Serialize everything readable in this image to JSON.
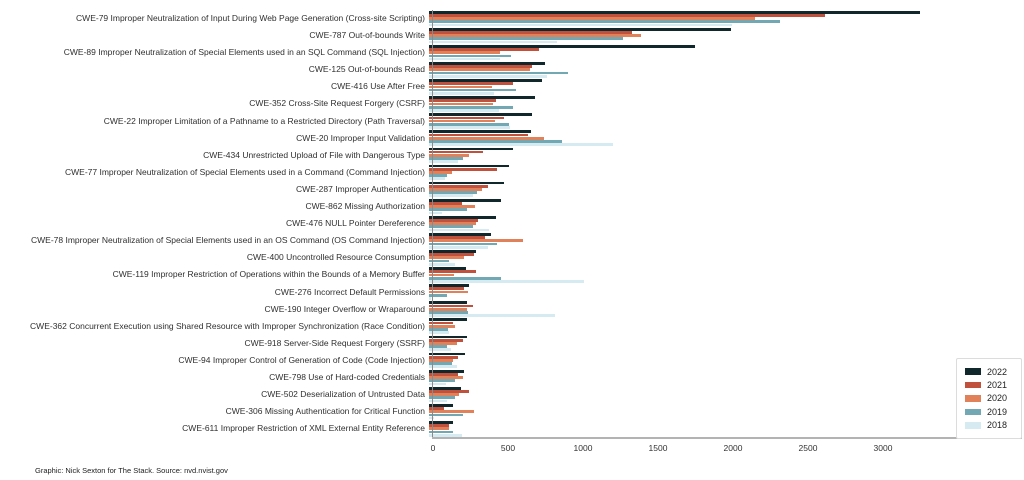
{
  "chart_data": {
    "type": "bar",
    "orientation": "horizontal",
    "title": "",
    "xlabel": "",
    "ylabel": "",
    "xlim": [
      0,
      3300
    ],
    "x_ticks": [
      0,
      500,
      1000,
      1500,
      2000,
      2500,
      3000
    ],
    "grid": "off",
    "legend_position": "bottom-right",
    "categories": [
      "CWE-79 Improper Neutralization of Input During Web Page Generation (Cross-site Scripting)",
      "CWE-787 Out-of-bounds Write",
      "CWE-89 Improper Neutralization of Special Elements used in an SQL Command (SQL Injection)",
      "CWE-125 Out-of-bounds Read",
      "CWE-416 Use After Free",
      "CWE-352 Cross-Site Request Forgery (CSRF)",
      "CWE-22 Improper Limitation of a Pathname to a Restricted Directory (Path Traversal)",
      "CWE-20 Improper Input Validation",
      "CWE-434 Unrestricted Upload of File with Dangerous Type",
      "CWE-77 Improper Neutralization of Special Elements used in a Command (Command Injection)",
      "CWE-287 Improper Authentication",
      "CWE-862 Missing Authorization",
      "CWE-476 NULL Pointer Dereference",
      "CWE-78 Improper Neutralization of Special Elements used in an OS Command (OS Command Injection)",
      "CWE-400 Uncontrolled Resource Consumption",
      "CWE-119 Improper Restriction of Operations within the Bounds of a Memory Buffer",
      "CWE-276 Incorrect Default Permissions",
      "CWE-190 Integer Overflow or Wraparound",
      "CWE-362 Concurrent Execution using Shared Resource with Improper Synchronization (Race Condition)",
      "CWE-918 Server-Side Request Forgery (SSRF)",
      "CWE-94 Improper Control of Generation of Code (Code Injection)",
      "CWE-798 Use of Hard-coded Credentials",
      "CWE-502 Deserialization of Untrusted Data",
      "CWE-306 Missing Authentication for Critical Function",
      "CWE-611 Improper Restriction of XML External Entity Reference"
    ],
    "series": [
      {
        "name": "2022",
        "color": "#10282c",
        "values": [
          3270,
          2010,
          1770,
          770,
          750,
          705,
          685,
          680,
          560,
          535,
          500,
          480,
          445,
          415,
          315,
          245,
          265,
          255,
          250,
          250,
          240,
          230,
          215,
          160,
          160
        ]
      },
      {
        "name": "2021",
        "color": "#c0523d",
        "values": [
          2640,
          1350,
          730,
          685,
          560,
          445,
          500,
          660,
          360,
          450,
          395,
          220,
          325,
          375,
          300,
          315,
          230,
          295,
          160,
          225,
          195,
          195,
          265,
          100,
          130
        ]
      },
      {
        "name": "2020",
        "color": "#e08159",
        "values": [
          2170,
          1410,
          470,
          675,
          420,
          425,
          440,
          765,
          265,
          155,
          350,
          305,
          315,
          625,
          230,
          165,
          260,
          250,
          175,
          185,
          160,
          225,
          200,
          300,
          135
        ]
      },
      {
        "name": "2019",
        "color": "#72a8b4",
        "values": [
          2340,
          1290,
          545,
          925,
          580,
          560,
          530,
          885,
          225,
          120,
          320,
          250,
          295,
          450,
          135,
          480,
          120,
          260,
          125,
          120,
          155,
          170,
          170,
          225,
          160
        ]
      },
      {
        "name": "2018",
        "color": "#d6eaf2",
        "values": [
          2020,
          855,
          475,
          785,
          430,
          465,
          540,
          1225,
          190,
          105,
          290,
          85,
          400,
          390,
          175,
          1030,
          15,
          840,
          135,
          145,
          185,
          115,
          120,
          35,
          220
        ]
      }
    ]
  },
  "footer": {
    "credit": "Graphic: Nick Sexton for The Stack. Source: nvd.nvist.gov"
  }
}
